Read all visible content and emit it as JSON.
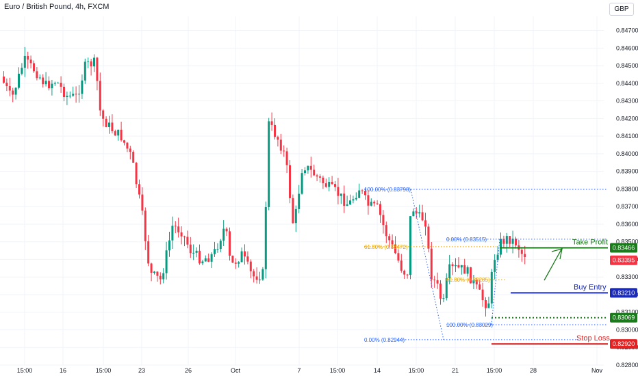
{
  "header": {
    "title": "Euro / British Pound, 4h, FXCM",
    "currency": "GBP"
  },
  "colors": {
    "up": "#089981",
    "down": "#f23645",
    "grid": "#f0f3fa",
    "fib": "#2962ff",
    "fib_mid": "#e6a100",
    "green": "#1b7a1b",
    "blue": "#1c2bb5",
    "red": "#e32323"
  },
  "chart_data": {
    "type": "candlestick",
    "y_range": [
      0.828,
      0.8478
    ],
    "y_ticks": [
      "0.84700",
      "0.84600",
      "0.84500",
      "0.84400",
      "0.84300",
      "0.84200",
      "0.84100",
      "0.84000",
      "0.83900",
      "0.83800",
      "0.83700",
      "0.83600",
      "0.83500",
      "0.83400",
      "0.83300",
      "0.83200",
      "0.83100",
      "0.83000",
      "0.82900",
      "0.82800"
    ],
    "x_ticks": [
      "15:00",
      "16",
      "15:00",
      "23",
      "26",
      "Oct",
      "7",
      "15:00",
      "14",
      "15:00",
      "21",
      "15:00",
      "28",
      "Nov"
    ],
    "key_prices": [
      {
        "name": "take-profit",
        "value": 0.83466,
        "text": "0.83466",
        "color": "#1b7a1b"
      },
      {
        "name": "current",
        "value": 0.83395,
        "text": "0.83395",
        "color": "#f23645"
      },
      {
        "name": "buy-entry",
        "value": 0.8321,
        "text": "0.83210",
        "color": "#1c2bb5"
      },
      {
        "name": "support",
        "value": 0.83069,
        "text": "0.83069",
        "color": "#1b7a1b"
      },
      {
        "name": "stop-loss",
        "value": 0.8292,
        "text": "0.82920",
        "color": "#e32323"
      }
    ],
    "fib_levels": [
      {
        "label": "100.00% (0.83798)",
        "value": 0.83798
      },
      {
        "label": "61.80% (0.83472)",
        "value": 0.83472
      },
      {
        "label": "0.00% (0.82944)",
        "value": 0.82944
      },
      {
        "label": "0.00% (0.83515)",
        "value": 0.83515
      },
      {
        "label": "61.80% (0.83285)",
        "value": 0.83285
      },
      {
        "label": "100.00% (0.83029)",
        "value": 0.83029
      }
    ],
    "annotations": {
      "take_profit": "Take Profit",
      "buy_entry": "Buy Entry",
      "stop_loss": "Stop Loss"
    }
  }
}
